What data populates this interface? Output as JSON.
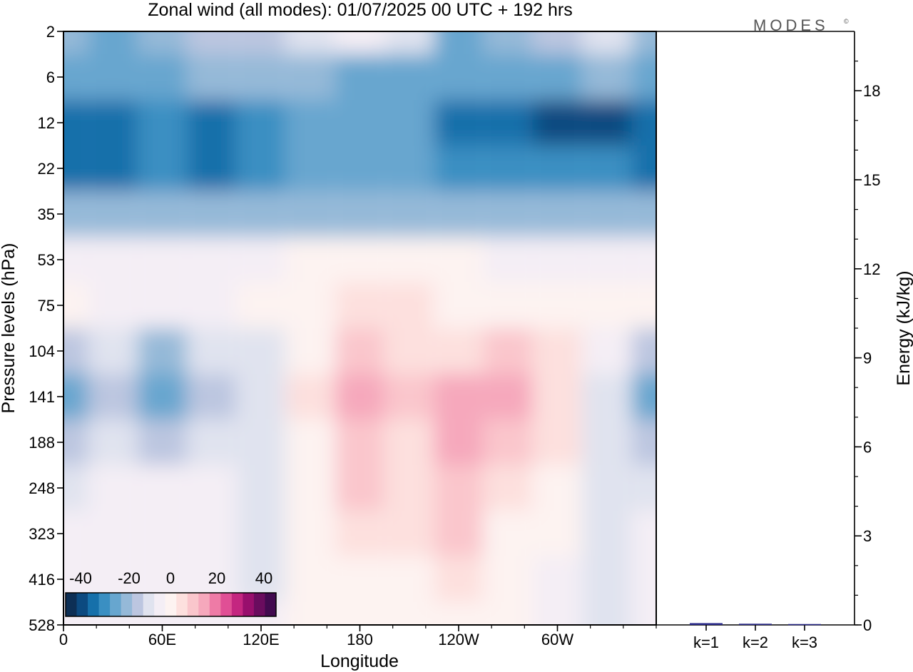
{
  "title": "Zonal wind (all modes):  01/07/2025  00 UTC  + 192 hrs",
  "logo": "MODES",
  "logo_mark": "©",
  "chart_data": [
    {
      "type": "heatmap",
      "title": "Zonal wind (all modes):  01/07/2025  00 UTC  + 192 hrs",
      "xlabel": "Longitude",
      "ylabel": "Pressure levels (hPa)",
      "x_ticks": [
        "0",
        "60E",
        "120E",
        "180",
        "120W",
        "60W"
      ],
      "x_tick_degrees": [
        0,
        60,
        120,
        180,
        240,
        300
      ],
      "xlim": [
        0,
        360
      ],
      "y_ticks": [
        "2",
        "6",
        "12",
        "22",
        "35",
        "53",
        "75",
        "104",
        "141",
        "188",
        "248",
        "323",
        "416",
        "528"
      ],
      "colorbar": {
        "tick_labels": [
          "-40",
          "-20",
          "0",
          "20",
          "40"
        ],
        "colors": [
          "#0d2f55",
          "#0c4a80",
          "#1670aa",
          "#3a8fc2",
          "#67a6cf",
          "#95b9d8",
          "#bcc6e0",
          "#e0e3ef",
          "#f4eef5",
          "#fdf3f1",
          "#fde0de",
          "#fac6cc",
          "#f6a8bc",
          "#ee7ba6",
          "#e04f95",
          "#c42680",
          "#980f6d",
          "#6a0c5e",
          "#420a4f"
        ]
      },
      "grid": false,
      "legend": "colorbar bottom-left inside plot",
      "zonal_wind_ms": {
        "levels_hPa": [
          2,
          6,
          12,
          22,
          35,
          53,
          75,
          104,
          141,
          188,
          248,
          323,
          416,
          528
        ],
        "longitudes": [
          0,
          30,
          60,
          90,
          120,
          150,
          180,
          210,
          240,
          270,
          300,
          330,
          360
        ],
        "values": [
          [
            -20,
            -25,
            -20,
            -15,
            -12,
            -8,
            -5,
            -10,
            -25,
            -20,
            -15,
            -10,
            -20
          ],
          [
            -25,
            -25,
            -22,
            -20,
            -20,
            -20,
            -22,
            -22,
            -25,
            -25,
            -22,
            -20,
            -25
          ],
          [
            -35,
            -35,
            -30,
            -35,
            -30,
            -25,
            -25,
            -25,
            -35,
            -35,
            -38,
            -38,
            -35
          ],
          [
            -35,
            -35,
            -30,
            -35,
            -30,
            -25,
            -25,
            -25,
            -30,
            -30,
            -30,
            -30,
            -35
          ],
          [
            -20,
            -20,
            -20,
            -20,
            -20,
            -20,
            -20,
            -18,
            -20,
            -20,
            -20,
            -20,
            -20
          ],
          [
            -5,
            -5,
            -5,
            -5,
            -5,
            0,
            0,
            0,
            0,
            -3,
            -5,
            -5,
            -5
          ],
          [
            0,
            -5,
            -5,
            -5,
            0,
            3,
            8,
            5,
            3,
            2,
            2,
            0,
            0
          ],
          [
            -15,
            -10,
            -20,
            -10,
            -8,
            3,
            12,
            8,
            5,
            10,
            5,
            -3,
            -15
          ],
          [
            -25,
            -12,
            -25,
            -15,
            -10,
            5,
            15,
            10,
            15,
            15,
            8,
            -8,
            -25
          ],
          [
            -15,
            -10,
            -12,
            -10,
            -10,
            3,
            12,
            5,
            15,
            10,
            5,
            -8,
            -15
          ],
          [
            -8,
            -5,
            -5,
            -5,
            -10,
            2,
            10,
            5,
            12,
            6,
            3,
            -6,
            -8
          ],
          [
            -5,
            -3,
            -5,
            -5,
            -8,
            0,
            5,
            5,
            10,
            3,
            0,
            -6,
            -5
          ],
          [
            -5,
            -3,
            -5,
            -5,
            -6,
            0,
            2,
            3,
            5,
            0,
            -3,
            -6,
            -5
          ],
          [
            -5,
            -2,
            -3,
            -3,
            -5,
            0,
            2,
            2,
            2,
            0,
            -5,
            -8,
            -5
          ]
        ]
      }
    },
    {
      "type": "bar",
      "ylabel": "Energy (kJ/kg)",
      "categories": [
        "k=1",
        "k=2",
        "k=3"
      ],
      "values": [
        0.06,
        0.04,
        0.03
      ],
      "ylim": [
        0,
        20
      ],
      "y_ticks": [
        "0",
        "3",
        "6",
        "9",
        "12",
        "15",
        "18"
      ],
      "bar_colors": [
        "#2a2a8a",
        "#2a2a8a",
        "#2a2a8a"
      ]
    }
  ]
}
